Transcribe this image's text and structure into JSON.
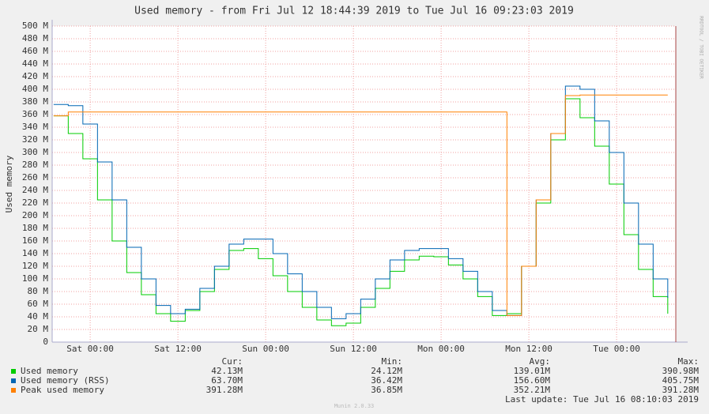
{
  "chart_data": {
    "type": "line",
    "title": "Used memory - from Fri Jul 12 18:44:39 2019 to Tue Jul 16 09:23:03 2019",
    "y_label": "Used memory",
    "side_label": "RRDTOOL / TOBI OETIKER",
    "x": [
      -5,
      -3,
      -1,
      1,
      3,
      5,
      7,
      9,
      11,
      13,
      15,
      17,
      19,
      21,
      23,
      25,
      27,
      29,
      31,
      33,
      35,
      37,
      39,
      41,
      43,
      45,
      47,
      49,
      51,
      53,
      55,
      57,
      59,
      61,
      63,
      65,
      67,
      69,
      71,
      73,
      75,
      77,
      79
    ],
    "xlim": [
      -5.2,
      80.1
    ],
    "xticks": [
      {
        "value": 0,
        "label": "Sat 00:00"
      },
      {
        "value": 12,
        "label": "Sat 12:00"
      },
      {
        "value": 24,
        "label": "Sun 00:00"
      },
      {
        "value": 36,
        "label": "Sun 12:00"
      },
      {
        "value": 48,
        "label": "Mon 00:00"
      },
      {
        "value": 60,
        "label": "Mon 12:00"
      },
      {
        "value": 72,
        "label": "Tue 00:00"
      }
    ],
    "ylim": [
      0,
      500
    ],
    "yticks": [
      0,
      {
        "value": 20,
        "label": "20 M"
      },
      {
        "value": 40,
        "label": "40 M"
      },
      {
        "value": 60,
        "label": "60 M"
      },
      {
        "value": 80,
        "label": "80 M"
      },
      {
        "value": 100,
        "label": "100 M"
      },
      {
        "value": 120,
        "label": "120 M"
      },
      {
        "value": 140,
        "label": "140 M"
      },
      {
        "value": 160,
        "label": "160 M"
      },
      {
        "value": 180,
        "label": "180 M"
      },
      {
        "value": 200,
        "label": "200 M"
      },
      {
        "value": 220,
        "label": "220 M"
      },
      {
        "value": 240,
        "label": "240 M"
      },
      {
        "value": 260,
        "label": "260 M"
      },
      {
        "value": 280,
        "label": "280 M"
      },
      {
        "value": 300,
        "label": "300 M"
      },
      {
        "value": 320,
        "label": "320 M"
      },
      {
        "value": 340,
        "label": "340 M"
      },
      {
        "value": 360,
        "label": "360 M"
      },
      {
        "value": 380,
        "label": "380 M"
      },
      {
        "value": 400,
        "label": "400 M"
      },
      {
        "value": 420,
        "label": "420 M"
      },
      {
        "value": 440,
        "label": "440 M"
      },
      {
        "value": 460,
        "label": "460 M"
      },
      {
        "value": 480,
        "label": "480 M"
      },
      {
        "value": 500,
        "label": "500 M"
      }
    ],
    "grid": true,
    "series": [
      {
        "name": "Used memory",
        "color": "#00cc00",
        "values": [
          358,
          330,
          290,
          225,
          160,
          110,
          75,
          45,
          33,
          50,
          80,
          115,
          145,
          148,
          132,
          105,
          80,
          55,
          35,
          26,
          30,
          55,
          85,
          112,
          130,
          136,
          135,
          122,
          100,
          72,
          42,
          45,
          120,
          220,
          320,
          385,
          355,
          310,
          250,
          170,
          115,
          72,
          45
        ]
      },
      {
        "name": "Used memory (RSS)",
        "color": "#0066b3",
        "values": [
          376,
          374,
          345,
          285,
          225,
          150,
          100,
          58,
          45,
          52,
          85,
          120,
          155,
          163,
          163,
          140,
          108,
          80,
          55,
          37,
          45,
          68,
          100,
          130,
          145,
          148,
          148,
          132,
          112,
          80,
          50,
          42,
          120,
          225,
          330,
          405,
          400,
          350,
          300,
          220,
          155,
          100,
          70
        ]
      },
      {
        "name": "Peak used memory",
        "color": "#ff8000",
        "values": [
          358,
          364,
          364,
          364,
          364,
          364,
          364,
          364,
          364,
          364,
          364,
          364,
          364,
          364,
          364,
          364,
          364,
          364,
          364,
          364,
          364,
          364,
          364,
          364,
          364,
          364,
          364,
          364,
          364,
          364,
          364,
          42,
          120,
          225,
          330,
          390,
          391,
          391,
          391,
          391,
          391,
          391,
          391
        ]
      }
    ],
    "legend_headers": [
      "Cur:",
      "Min:",
      "Avg:",
      "Max:"
    ],
    "legend_stats": [
      [
        "42.13M",
        "24.12M",
        "139.01M",
        "390.98M"
      ],
      [
        "63.70M",
        "36.42M",
        "156.60M",
        "405.75M"
      ],
      [
        "391.28M",
        "36.85M",
        "352.21M",
        "391.28M"
      ]
    ],
    "last_update": "Last update: Tue Jul 16 08:10:03 2019",
    "footer": "Munin 2.0.33"
  }
}
